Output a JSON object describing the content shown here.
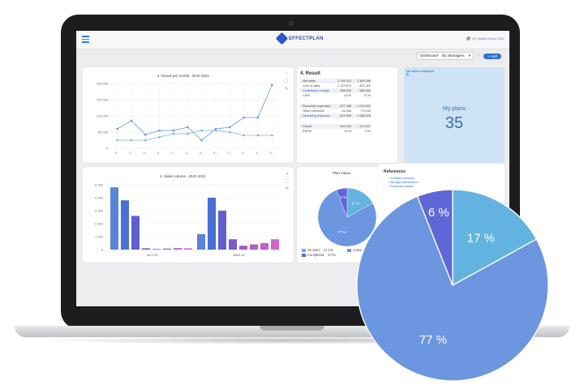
{
  "topbar": {
    "logo": "EFFECTPLAN",
    "user": "QP Ashley Demo 2021"
  },
  "toolbar": {
    "dashboard_label": "Dashboard",
    "dashboard_value": "BU Managers",
    "add_label": "Add"
  },
  "result_chart": {
    "title": "4. Result per month - BUD 2021",
    "y_ticks": [
      "200 000",
      "150 000",
      "100 000",
      "50 000",
      "0"
    ],
    "x_ticks": [
      "2...",
      "2...",
      "2...",
      "2...",
      "2...",
      "2...",
      "2...",
      "2...",
      "2...",
      "2...",
      "2...",
      "2..."
    ]
  },
  "result_table": {
    "title": "4. Result",
    "rows": [
      {
        "label": "Net sales",
        "v1": "2 163 110",
        "v2": "1 369 406"
      },
      {
        "label": "Cost of sales",
        "v1": "-1 124 570",
        "v2": "-402 322"
      },
      {
        "label": "Contribution margin",
        "v1": "938 540",
        "v2": "966 984"
      },
      {
        "label": "CM%",
        "v1": "43 %",
        "v2": "71 %"
      },
      {
        "label": "Personnel expenses",
        "v1": "-427 498",
        "v2": "-1 015 602"
      },
      {
        "label": "Other expenses",
        "v1": "-16 498",
        "v2": "-73 233"
      },
      {
        "label": "Operating expenses",
        "v1": "-443 996",
        "v2": "-1 088 925"
      },
      {
        "label": "Result",
        "v1": "494 544",
        "v2": "-122 021"
      },
      {
        "label": "RES%",
        "v1": "23 %",
        "v2": "-9 %"
      }
    ]
  },
  "plans_card": {
    "workflows_label": "My active workflows",
    "workflows_value": "5",
    "label": "My plans",
    "value": "35"
  },
  "sales_chart": {
    "title": "4. Sales volume - BUD 2021",
    "y_ticks": [
      "5 000",
      "4 000",
      "3 000",
      "2 000",
      "1 000",
      "0"
    ],
    "groups": [
      "ACT-20",
      "BUD-21"
    ]
  },
  "plan_status": {
    "title": "Plan status",
    "legend": [
      "On hold",
      "Active",
      "Completed"
    ],
    "legend_values": [
      "17.1%",
      "",
      "5.7%"
    ]
  },
  "references": {
    "title": "References",
    "items": [
      "Contact persons",
      "Budget instructions",
      "Financial model"
    ]
  },
  "chart_data": [
    {
      "type": "line",
      "title": "4. Result per month - BUD 2021",
      "x": [
        "2...",
        "2...",
        "2...",
        "2...",
        "2...",
        "2...",
        "2...",
        "2...",
        "2...",
        "2...",
        "2...",
        "2..."
      ],
      "ylim": [
        0,
        200000
      ],
      "series": [
        {
          "values": [
            60000,
            85000,
            42000,
            55000,
            55000,
            65000,
            25000,
            60000,
            65000,
            95000,
            95000,
            195000
          ]
        },
        {
          "values": [
            25000,
            25000,
            25000,
            35000,
            45000,
            45000,
            55000,
            55000,
            50000,
            40000,
            40000,
            40000
          ]
        }
      ]
    },
    {
      "type": "bar",
      "title": "4. Sales volume - BUD 2021",
      "categories": [
        "ACT-20",
        "BUD-21"
      ],
      "ylim": [
        0,
        5000
      ],
      "series": [
        {
          "values": [
            4800,
            1200
          ]
        },
        {
          "values": [
            3800,
            4000
          ]
        },
        {
          "values": [
            2600,
            3000
          ]
        },
        {
          "values": [
            100,
            800
          ]
        },
        {
          "values": [
            50,
            300
          ]
        },
        {
          "values": [
            80,
            400
          ]
        },
        {
          "values": [
            120,
            500
          ]
        },
        {
          "values": [
            100,
            800
          ]
        }
      ],
      "colors": [
        "#5a84d8",
        "#4a6fd6",
        "#5f5fd0",
        "#7c5cd0",
        "#9b5ccf",
        "#b25fcf",
        "#c25fce",
        "#d264cd"
      ]
    },
    {
      "type": "pie",
      "title": "Plan status",
      "labels": [
        "On hold",
        "Active",
        "Completed"
      ],
      "values": [
        17,
        77,
        6
      ],
      "slice_labels": [
        "17 %",
        "77 %",
        "6 %"
      ],
      "colors": [
        "#63b3e0",
        "#6d96e0",
        "#5f67d8"
      ]
    }
  ]
}
